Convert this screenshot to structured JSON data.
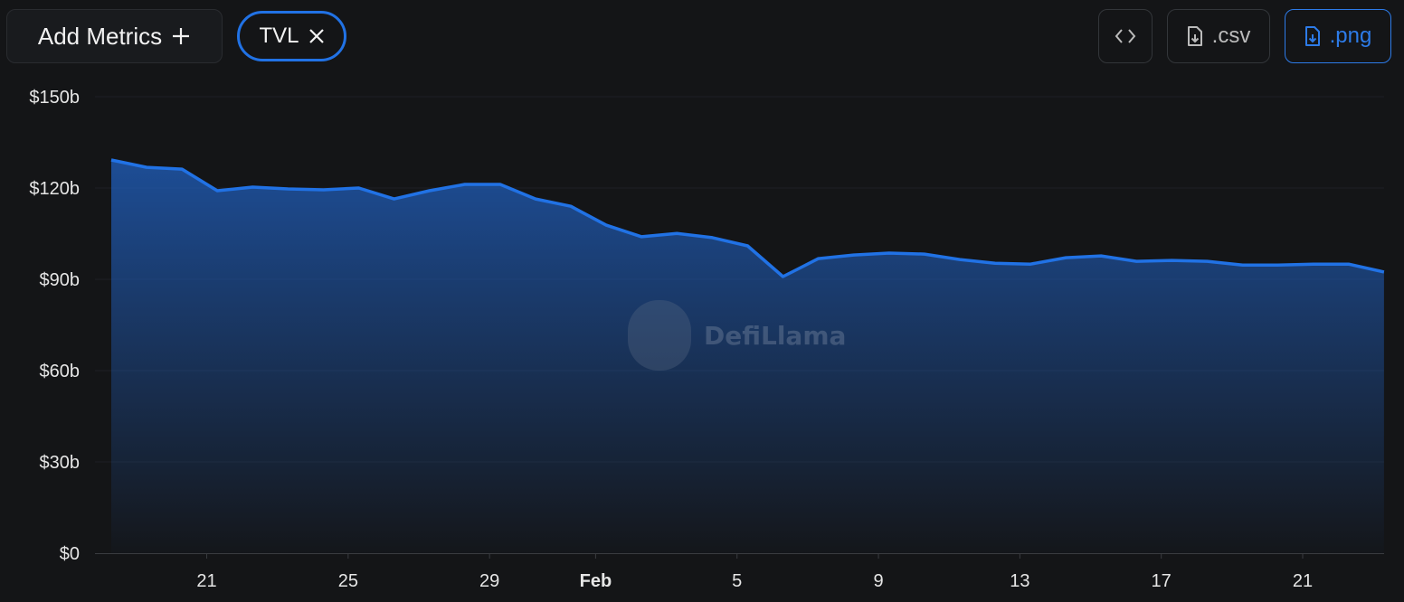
{
  "toolbar": {
    "add_metrics_label": "Add Metrics",
    "add_icon": "plus-icon",
    "metric_chip": {
      "label": "TVL",
      "remove_icon": "close-icon"
    },
    "embed_icon": "code-icon",
    "csv_label": ".csv",
    "png_label": ".png",
    "download_icon": "file-download-icon"
  },
  "colors": {
    "background": "#141517",
    "accent": "#2172e5",
    "line": "#2172e5"
  },
  "watermark": "DefiLlama",
  "chart_data": {
    "type": "area",
    "title": "",
    "xlabel": "",
    "ylabel": "",
    "series": [
      {
        "values": [
          129.2,
          126.8,
          126.2,
          119.1,
          120.3,
          119.7,
          119.4,
          120.0,
          116.4,
          119.1,
          121.2,
          121.2,
          116.4,
          114.0,
          107.8,
          104.0,
          105.1,
          103.7,
          101.0,
          90.9,
          96.8,
          98.0,
          98.6,
          98.3,
          96.5,
          95.3,
          95.0,
          97.1,
          97.7,
          95.9,
          96.2,
          95.9,
          94.7,
          94.7,
          95.0,
          95.0,
          92.4
        ]
      }
    ],
    "x": [
      "Jan 18",
      "Jan 19",
      "Jan 20",
      "Jan 21",
      "Jan 22",
      "Jan 23",
      "Jan 24",
      "Jan 25",
      "Jan 26",
      "Jan 27",
      "Jan 28",
      "Jan 29",
      "Jan 30",
      "Jan 31",
      "Feb 1",
      "Feb 2",
      "Feb 3",
      "Feb 4",
      "Feb 5",
      "Feb 6",
      "Feb 7",
      "Feb 8",
      "Feb 9",
      "Feb 10",
      "Feb 11",
      "Feb 12",
      "Feb 13",
      "Feb 14",
      "Feb 15",
      "Feb 16",
      "Feb 17",
      "Feb 18",
      "Feb 19",
      "Feb 20",
      "Feb 21",
      "Feb 22",
      "Feb 23"
    ],
    "unit": "billion USD",
    "ylim": [
      0,
      150
    ],
    "y_ticks": [
      "$0",
      "$30b",
      "$60b",
      "$90b",
      "$120b",
      "$150b"
    ],
    "x_ticks": [
      {
        "label": "21",
        "date": "Jan 21"
      },
      {
        "label": "25",
        "date": "Jan 25"
      },
      {
        "label": "29",
        "date": "Jan 29"
      },
      {
        "label": "Feb",
        "date": "Feb 1"
      },
      {
        "label": "5",
        "date": "Feb 5"
      },
      {
        "label": "9",
        "date": "Feb 9"
      },
      {
        "label": "13",
        "date": "Feb 13"
      },
      {
        "label": "17",
        "date": "Feb 17"
      },
      {
        "label": "21",
        "date": "Feb 21"
      }
    ],
    "grid": true,
    "legend": "none"
  }
}
